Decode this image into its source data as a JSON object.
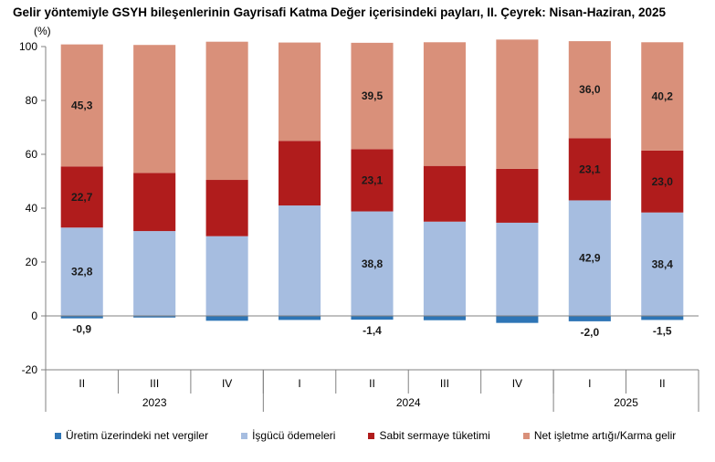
{
  "title": "Gelir yöntemiyle GSYH bileşenlerinin Gayrisafi Katma Değer içerisindeki payları, II. Çeyrek: Nisan-Haziran, 2025",
  "chart_data": {
    "type": "bar",
    "stacked": true,
    "unit_label": "(%)",
    "ylim": [
      -20,
      100
    ],
    "yticks": [
      -20,
      0,
      20,
      40,
      60,
      80,
      100
    ],
    "categories": [
      "II",
      "III",
      "IV",
      "I",
      "II",
      "III",
      "IV",
      "I",
      "II"
    ],
    "groups": [
      {
        "label": "2023",
        "categories": [
          "II",
          "III",
          "IV"
        ]
      },
      {
        "label": "2024",
        "categories": [
          "I",
          "II",
          "III",
          "IV"
        ]
      },
      {
        "label": "2025",
        "categories": [
          "I",
          "II"
        ]
      }
    ],
    "series": [
      {
        "name": "Üretim üzerindeki net vergiler",
        "color": "#2e75b6",
        "values": [
          -0.9,
          -0.6,
          -1.8,
          -1.5,
          -1.4,
          -1.6,
          -2.6,
          -2.0,
          -1.5
        ],
        "labels": [
          "-0,9",
          "",
          "",
          "",
          "-1,4",
          "",
          "",
          "-2,0",
          "-1,5"
        ]
      },
      {
        "name": "İşgücü ödemeleri",
        "color": "#a6bde0",
        "values": [
          32.8,
          31.5,
          29.6,
          41.0,
          38.8,
          35.0,
          34.6,
          42.9,
          38.4
        ],
        "labels": [
          "32,8",
          "",
          "",
          "",
          "38,8",
          "",
          "",
          "42,9",
          "38,4"
        ]
      },
      {
        "name": "Sabit sermaye tüketimi",
        "color": "#b01c1c",
        "values": [
          22.7,
          21.6,
          20.9,
          24.0,
          23.1,
          20.7,
          20.0,
          23.1,
          23.0
        ],
        "labels": [
          "22,7",
          "",
          "",
          "",
          "23,1",
          "",
          "",
          "23,1",
          "23,0"
        ]
      },
      {
        "name": "Net işletme artığı/Karma gelir",
        "color": "#d9907a",
        "values": [
          45.3,
          47.5,
          51.3,
          36.5,
          39.5,
          45.9,
          48.0,
          36.0,
          40.2
        ],
        "labels": [
          "45,3",
          "",
          "",
          "",
          "39,5",
          "",
          "",
          "36,0",
          "40,2"
        ]
      }
    ]
  }
}
